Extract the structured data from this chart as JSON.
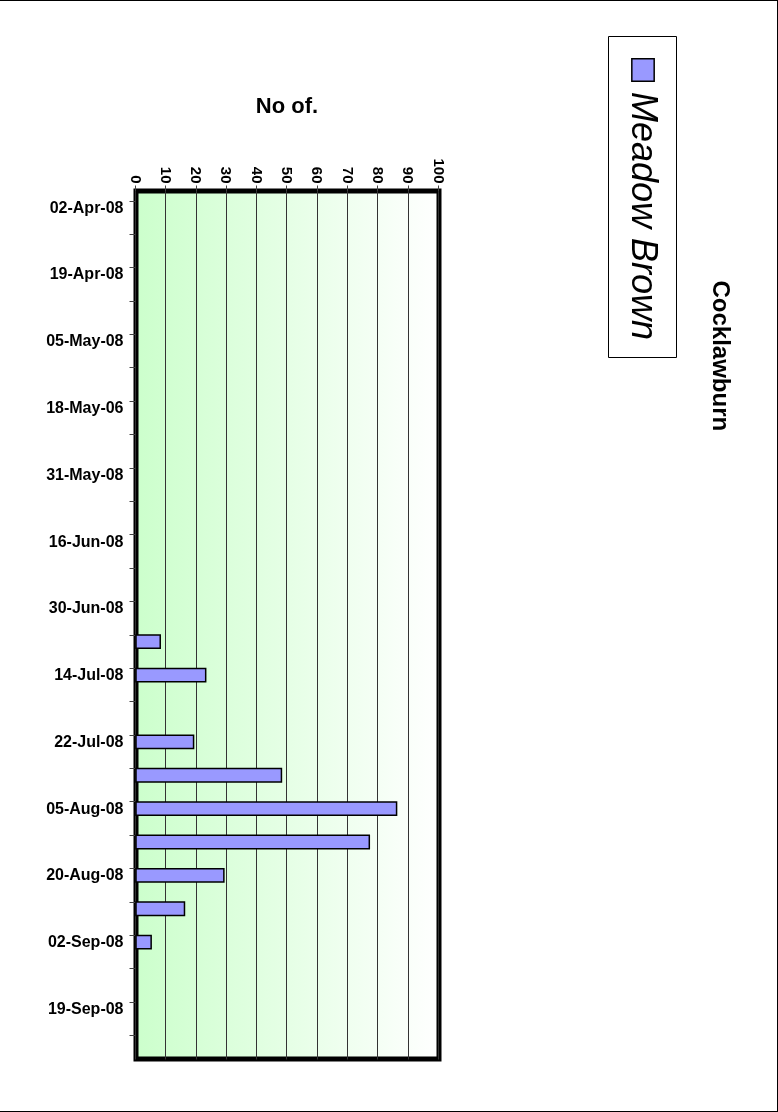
{
  "chart_data": {
    "type": "bar",
    "orientation": "horizontal",
    "title": "Cocklawburn",
    "xlabel": "No of.",
    "categories": [
      "02-Apr-08",
      null,
      "19-Apr-08",
      null,
      "05-May-08",
      null,
      "18-May-06",
      null,
      "31-May-08",
      null,
      "16-Jun-08",
      null,
      "30-Jun-08",
      null,
      "14-Jul-08",
      null,
      "22-Jul-08",
      null,
      "05-Aug-08",
      null,
      "20-Aug-08",
      null,
      "02-Sep-08",
      null,
      "19-Sep-08",
      null
    ],
    "series": [
      {
        "name": "Meadow Brown",
        "color": "#9999ff",
        "values": [
          null,
          null,
          null,
          null,
          null,
          null,
          null,
          null,
          null,
          null,
          null,
          null,
          null,
          8,
          23,
          null,
          19,
          48,
          86,
          77,
          29,
          16,
          5,
          null,
          null,
          null
        ]
      }
    ],
    "xlim": [
      0,
      100
    ],
    "xticks": [
      0,
      10,
      20,
      30,
      40,
      50,
      60,
      70,
      80,
      90,
      100
    ],
    "grid": "x",
    "legend": "top right"
  }
}
